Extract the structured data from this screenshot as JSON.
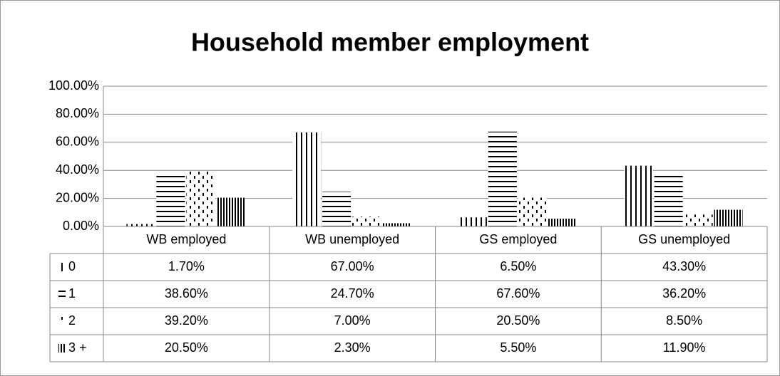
{
  "chart_data": {
    "type": "bar",
    "title": "Household member employment",
    "categories": [
      "WB employed",
      "WB unemployed",
      "GS employed",
      "GS unemployed"
    ],
    "series": [
      {
        "name": "0",
        "color": "#000000",
        "values": [
          1.7,
          67.0,
          6.5,
          43.3
        ],
        "value_labels": [
          "1.70%",
          "67.00%",
          "6.50%",
          "43.30%"
        ]
      },
      {
        "name": "1",
        "color": "#000000",
        "values": [
          38.6,
          24.7,
          67.6,
          36.2
        ],
        "value_labels": [
          "38.60%",
          "24.70%",
          "67.60%",
          "36.20%"
        ]
      },
      {
        "name": "2",
        "color": "#000000",
        "values": [
          39.2,
          7.0,
          20.5,
          8.5
        ],
        "value_labels": [
          "39.20%",
          "7.00%",
          "20.50%",
          "8.50%"
        ]
      },
      {
        "name": "3 +",
        "color": "#000000",
        "values": [
          20.5,
          2.3,
          5.5,
          11.9
        ],
        "value_labels": [
          "20.50%",
          "2.30%",
          "5.50%",
          "11.90%"
        ]
      }
    ],
    "ylim": [
      0,
      100
    ],
    "yticks": [
      {
        "value": 0,
        "label": "0.00%"
      },
      {
        "value": 20,
        "label": "20.00%"
      },
      {
        "value": 40,
        "label": "40.00%"
      },
      {
        "value": 60,
        "label": "60.00%"
      },
      {
        "value": 80,
        "label": "80.00%"
      },
      {
        "value": 100,
        "label": "100.00%"
      }
    ],
    "grid": true
  }
}
